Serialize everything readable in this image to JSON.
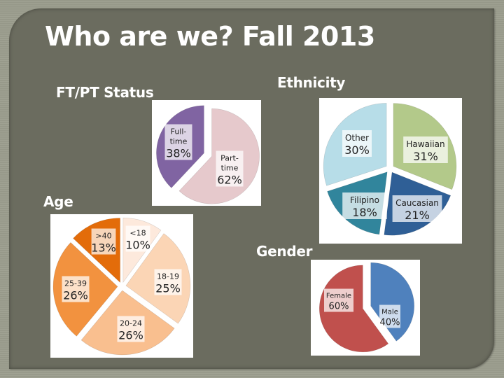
{
  "slide": {
    "title": "Who are we? Fall 2013",
    "colors": {
      "background": "#9a9c8c",
      "panel": "#6b6c5f",
      "text": "#ffffff"
    }
  },
  "sections": {
    "ftpt": {
      "label": "FT/PT Status"
    },
    "ethnicity": {
      "label": "Ethnicity"
    },
    "age": {
      "label": "Age"
    },
    "gender": {
      "label": "Gender"
    }
  },
  "chart_data": [
    {
      "id": "ftpt",
      "type": "pie",
      "title": "FT/PT Status",
      "categories": [
        "Full-time",
        "Part-time"
      ],
      "values": [
        38,
        62
      ],
      "labels": [
        [
          "Full-",
          "time",
          "38%"
        ],
        [
          "Part-",
          "time",
          "62%"
        ]
      ],
      "colors": [
        "#8064a2",
        "#e6c9cc"
      ],
      "exploded": true,
      "start_angle_deg": 0,
      "direction": "counterclockwise-first"
    },
    {
      "id": "ethnicity",
      "type": "pie",
      "title": "Ethnicity",
      "categories": [
        "Hawaiian",
        "Caucasian",
        "Filipino",
        "Other"
      ],
      "values": [
        31,
        21,
        18,
        30
      ],
      "labels": [
        [
          "Hawaiian",
          "31%"
        ],
        [
          "Caucasian",
          "21%"
        ],
        [
          "Filipino",
          "18%"
        ],
        [
          "Other",
          "30%"
        ]
      ],
      "colors": [
        "#b3c98a",
        "#2f5f96",
        "#31859c",
        "#b7dde8"
      ],
      "exploded": true
    },
    {
      "id": "age",
      "type": "pie",
      "title": "Age",
      "categories": [
        "<18",
        "18-19",
        "20-24",
        "25-39",
        ">40"
      ],
      "values": [
        10,
        25,
        26,
        26,
        13
      ],
      "labels": [
        [
          "<18",
          "10%"
        ],
        [
          "18-19",
          "25%"
        ],
        [
          "20-24",
          "26%"
        ],
        [
          "25-39",
          "26%"
        ],
        [
          ">40",
          "13%"
        ]
      ],
      "colors": [
        "#fde9dc",
        "#fbd5b5",
        "#f9bf8f",
        "#f2923f",
        "#e36c0a"
      ],
      "exploded": true
    },
    {
      "id": "gender",
      "type": "pie",
      "title": "Gender",
      "categories": [
        "Female",
        "Male"
      ],
      "values": [
        60,
        40
      ],
      "labels": [
        [
          "Female",
          "60%"
        ],
        [
          "Male",
          "40%"
        ]
      ],
      "colors": [
        "#c0504d",
        "#4f81bd"
      ],
      "exploded": true
    }
  ]
}
